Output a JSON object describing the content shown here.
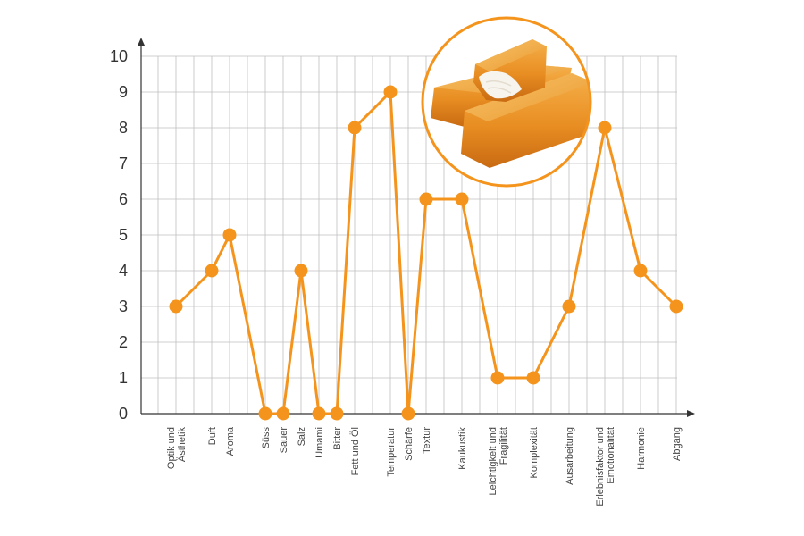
{
  "chart_data": {
    "type": "line",
    "title": "",
    "xlabel": "",
    "ylabel": "",
    "ylim": [
      0,
      10
    ],
    "yticks": [
      0,
      1,
      2,
      3,
      4,
      5,
      6,
      7,
      8,
      9,
      10
    ],
    "grid": true,
    "line_color": "#F4941C",
    "marker_color": "#F4941C",
    "grid_color": "#BFBFBF",
    "axis_color": "#333333",
    "inset_image": "fish-sticks-photo",
    "categories": [
      {
        "label": [
          "Optik und",
          "Ästhetik"
        ],
        "value": 3
      },
      {
        "label": [
          "Duft"
        ],
        "value": 4
      },
      {
        "label": [
          "Aroma"
        ],
        "value": 5
      },
      {
        "label": [
          "Süss"
        ],
        "value": 0
      },
      {
        "label": [
          "Sauer"
        ],
        "value": 0
      },
      {
        "label": [
          "Salz"
        ],
        "value": 4
      },
      {
        "label": [
          "Umami"
        ],
        "value": 0
      },
      {
        "label": [
          "Bitter"
        ],
        "value": 0
      },
      {
        "label": [
          "Fett und Öl"
        ],
        "value": 8
      },
      {
        "label": [
          "Temperatur"
        ],
        "value": 9
      },
      {
        "label": [
          "Schärfe"
        ],
        "value": 0
      },
      {
        "label": [
          "Textur"
        ],
        "value": 6
      },
      {
        "label": [
          "Kaukustik"
        ],
        "value": 6
      },
      {
        "label": [
          "Leichtigkeit und",
          "Fragilität"
        ],
        "value": 1
      },
      {
        "label": [
          "Komplexität"
        ],
        "value": 1
      },
      {
        "label": [
          "Ausarbeitung"
        ],
        "value": 3
      },
      {
        "label": [
          "Erlebnisfaktor und",
          "Emotionalität"
        ],
        "value": 8
      },
      {
        "label": [
          "Harmonie"
        ],
        "value": 4
      },
      {
        "label": [
          "Abgang"
        ],
        "value": 3
      }
    ]
  }
}
